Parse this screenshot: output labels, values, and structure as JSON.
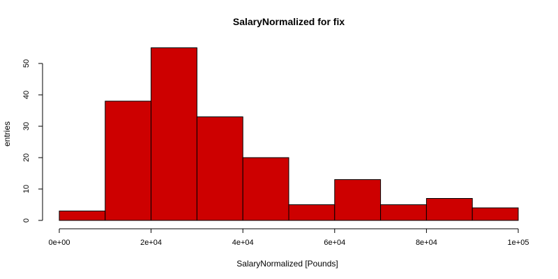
{
  "chart_data": {
    "type": "bar",
    "title": "SalaryNormalized for fix",
    "xlabel": "SalaryNormalized [Pounds]",
    "ylabel": "entries",
    "bins": [
      {
        "from": 0,
        "to": 10000,
        "count": 3
      },
      {
        "from": 10000,
        "to": 20000,
        "count": 38
      },
      {
        "from": 20000,
        "to": 30000,
        "count": 55
      },
      {
        "from": 30000,
        "to": 40000,
        "count": 33
      },
      {
        "from": 40000,
        "to": 50000,
        "count": 20
      },
      {
        "from": 50000,
        "to": 60000,
        "count": 5
      },
      {
        "from": 60000,
        "to": 70000,
        "count": 13
      },
      {
        "from": 70000,
        "to": 80000,
        "count": 5
      },
      {
        "from": 80000,
        "to": 90000,
        "count": 7
      },
      {
        "from": 90000,
        "to": 100000,
        "count": 4
      }
    ],
    "xlim": [
      0,
      100000
    ],
    "ylim": [
      0,
      50
    ],
    "x_ticks": [
      {
        "value": 0,
        "label": "0e+00"
      },
      {
        "value": 20000,
        "label": "2e+04"
      },
      {
        "value": 40000,
        "label": "4e+04"
      },
      {
        "value": 60000,
        "label": "6e+04"
      },
      {
        "value": 80000,
        "label": "8e+04"
      },
      {
        "value": 100000,
        "label": "1e+05"
      }
    ],
    "y_ticks": [
      {
        "value": 0,
        "label": "0"
      },
      {
        "value": 10,
        "label": "10"
      },
      {
        "value": 20,
        "label": "20"
      },
      {
        "value": 30,
        "label": "30"
      },
      {
        "value": 40,
        "label": "40"
      },
      {
        "value": 50,
        "label": "50"
      }
    ],
    "bar_color": "#cd0000",
    "grid": false,
    "legend": "none"
  }
}
